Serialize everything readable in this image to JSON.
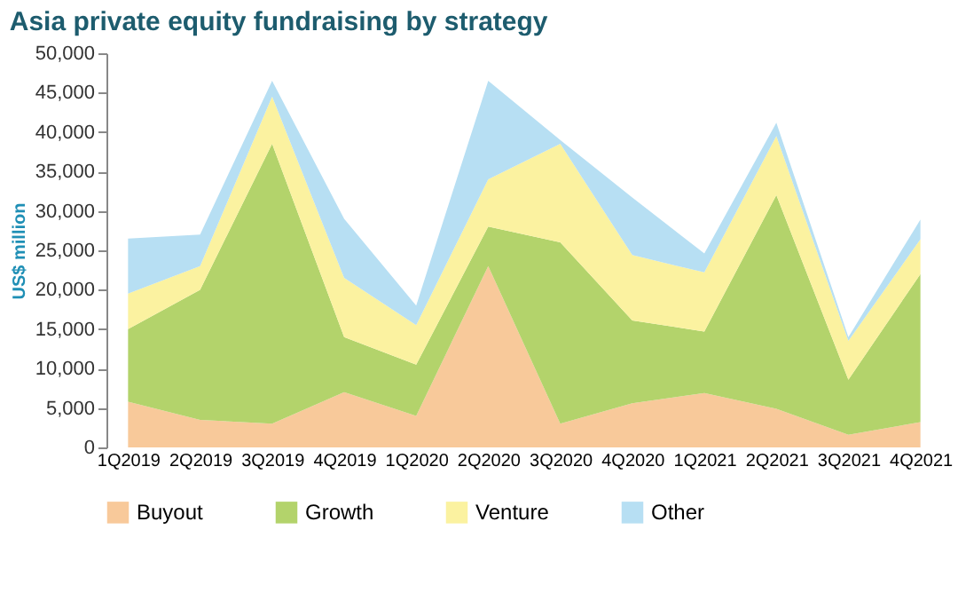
{
  "chart_data": {
    "type": "area",
    "stacked": true,
    "title": "Asia private equity fundraising by strategy",
    "ylabel": "US$ million",
    "categories": [
      "1Q2019",
      "2Q2019",
      "3Q2019",
      "4Q2019",
      "1Q2020",
      "2Q2020",
      "3Q2020",
      "4Q2020",
      "1Q2021",
      "2Q2021",
      "3Q2021",
      "4Q2021"
    ],
    "series": [
      {
        "name": "Buyout",
        "color": "#f8c99a",
        "values": [
          5800,
          3500,
          3000,
          7000,
          4000,
          23000,
          3000,
          5600,
          6900,
          4900,
          1600,
          3200
        ]
      },
      {
        "name": "Growth",
        "color": "#b3d36b",
        "values": [
          9200,
          16500,
          35500,
          7000,
          6500,
          5000,
          23000,
          10500,
          7800,
          27100,
          7000,
          18800
        ]
      },
      {
        "name": "Venture",
        "color": "#fbf2a0",
        "values": [
          4500,
          3000,
          6000,
          7500,
          5000,
          6000,
          12500,
          8300,
          7500,
          7500,
          4900,
          4400
        ]
      },
      {
        "name": "Other",
        "color": "#b7dff3",
        "values": [
          7000,
          4000,
          2000,
          7500,
          2500,
          12500,
          500,
          7300,
          2400,
          1700,
          500,
          2500
        ]
      }
    ],
    "ylim": [
      0,
      50000
    ],
    "yticks": [
      0,
      {
        "value": 5000,
        "label": "5,000"
      },
      {
        "value": 10000,
        "label": "10,000"
      },
      {
        "value": 15000,
        "label": "15,000"
      },
      {
        "value": 20000,
        "label": "20,000"
      },
      {
        "value": 25000,
        "label": "25,000"
      },
      {
        "value": 30000,
        "label": "30,000"
      },
      {
        "value": 35000,
        "label": "35,000"
      },
      {
        "value": 40000,
        "label": "40,000"
      },
      {
        "value": 45000,
        "label": "45,000"
      },
      {
        "value": 50000,
        "label": "50,000"
      }
    ],
    "grid": false,
    "legend": "bottom"
  }
}
